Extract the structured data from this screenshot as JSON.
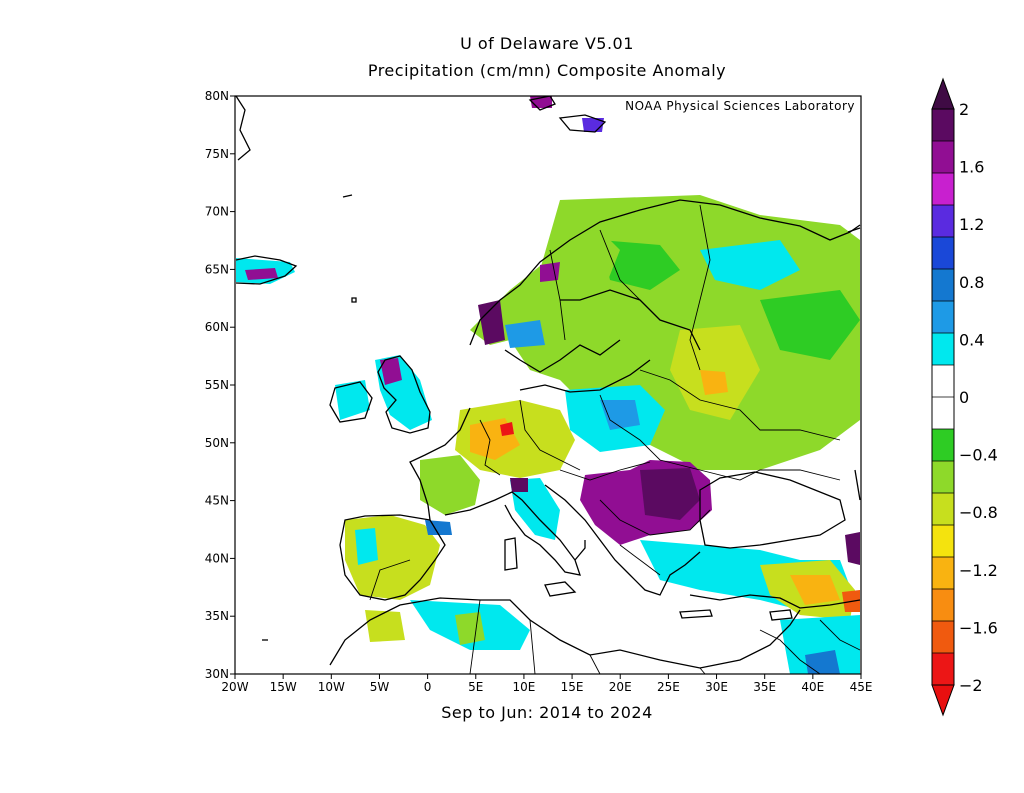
{
  "title_line1": "U of Delaware V5.01",
  "title_line2": "Precipitation (cm/mn) Composite Anomaly",
  "credit": "NOAA Physical Sciences Laboratory",
  "x_caption": "Sep to Jun: 2014 to 2024",
  "map": {
    "lon_range": [
      -20,
      45
    ],
    "lat_range": [
      30,
      80
    ],
    "lon_ticks": [
      "20W",
      "15W",
      "10W",
      "5W",
      "0",
      "5E",
      "10E",
      "15E",
      "20E",
      "25E",
      "30E",
      "35E",
      "40E",
      "45E"
    ],
    "lat_ticks": [
      "30N",
      "35N",
      "40N",
      "45N",
      "50N",
      "55N",
      "60N",
      "65N",
      "70N",
      "75N",
      "80N"
    ]
  },
  "colorbar": {
    "labels": [
      "2",
      "1.6",
      "1.2",
      "0.8",
      "0.4",
      "0",
      "−0.4",
      "−0.8",
      "−1.2",
      "−1.6",
      "−2"
    ],
    "colors_top_to_bottom": [
      "#5b0a61",
      "#910e93",
      "#c820cf",
      "#5a2be0",
      "#1a48d8",
      "#1478d0",
      "#1e9ae6",
      "#00e8ee",
      "#ffffff",
      "#ffffff",
      "#2ecc24",
      "#8ed92a",
      "#c7df1e",
      "#f4e30e",
      "#f9b311",
      "#f88d11",
      "#f05a0f",
      "#ec1616"
    ],
    "top_arrow_color": "#3f0b44",
    "bottom_arrow_color": "#e80f0f"
  }
}
